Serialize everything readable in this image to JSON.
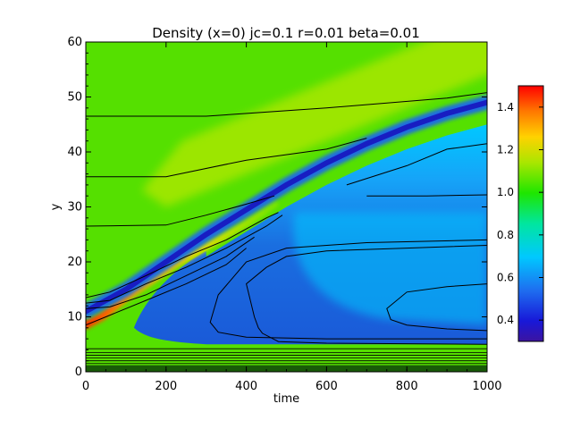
{
  "chart_data": {
    "type": "heatmap",
    "title": "Density (x=0) jc=0.1 r=0.01 beta=0.01",
    "xlabel": "time",
    "ylabel": "y",
    "xlim": [
      0,
      1000
    ],
    "ylim": [
      0,
      60
    ],
    "x_ticks": [
      0,
      200,
      400,
      600,
      800,
      1000
    ],
    "y_ticks": [
      0,
      10,
      20,
      30,
      40,
      50,
      60
    ],
    "colorbar": {
      "range": [
        0.3,
        1.5
      ],
      "ticks": [
        0.4,
        0.6,
        0.8,
        1.0,
        1.2,
        1.4
      ]
    },
    "colors": {
      "background_mid": "#55e000",
      "light_band": "#b4e800",
      "low_dark": "#1818c0",
      "low_mid": "#1a6ee0",
      "low_light": "#00c8ff",
      "high_peak": "#ff3000",
      "high_mid": "#ffc800"
    },
    "features": {
      "high_density_ridge": {
        "t": [
          0,
          40,
          100,
          160,
          220,
          280,
          340,
          400,
          470
        ],
        "y": [
          8.5,
          10,
          13.5,
          16.5,
          19.5,
          22,
          24.5,
          27,
          30.5
        ],
        "peak_value": 1.4
      },
      "depletion_front": {
        "t": [
          0,
          100,
          200,
          300,
          400,
          500,
          600,
          700,
          800,
          900,
          1000
        ],
        "y": [
          11,
          15,
          20,
          25,
          29.5,
          34,
          38,
          41.5,
          44.5,
          47,
          49
        ],
        "min_value": 0.3
      },
      "depleted_region": {
        "t_start": 120,
        "y_bottom": 7,
        "y_top": 30,
        "min_value": 0.55
      },
      "light_band": {
        "t": [
          200,
          400,
          600,
          800,
          1000
        ],
        "y": [
          36,
          42,
          48,
          54,
          60
        ],
        "value": 1.1
      }
    },
    "contours": [
      {
        "t": [
          0,
          300,
          600,
          900,
          1000
        ],
        "y": [
          46.5,
          46.5,
          48,
          49.8,
          50.8
        ]
      },
      {
        "t": [
          0,
          200,
          400,
          600,
          700
        ],
        "y": [
          35.5,
          35.5,
          38.5,
          40.5,
          42.5
        ]
      },
      {
        "t": [
          0,
          200,
          300,
          400,
          470
        ],
        "y": [
          26.5,
          26.7,
          28.5,
          30.5,
          32
        ]
      },
      {
        "t": [
          700,
          850,
          1000
        ],
        "y": [
          32,
          32,
          32.2
        ]
      },
      {
        "t": [
          650,
          800,
          900,
          1000
        ],
        "y": [
          34,
          37.5,
          40.5,
          41.5
        ]
      },
      {
        "t": [
          0,
          60,
          150,
          250,
          350,
          450,
          480
        ],
        "y": [
          13.5,
          14.5,
          17.5,
          21,
          24,
          28,
          29
        ]
      },
      {
        "t": [
          0,
          60,
          150,
          250,
          350,
          450,
          490
        ],
        "y": [
          12.5,
          13,
          16,
          19,
          22.5,
          26.5,
          28.5
        ]
      },
      {
        "t": [
          0,
          60,
          150,
          250,
          350,
          420
        ],
        "y": [
          11.5,
          11.8,
          14,
          17.5,
          21,
          24.5
        ]
      },
      {
        "t": [
          0,
          50,
          150,
          250,
          350,
          400
        ],
        "y": [
          8.5,
          10,
          13,
          16,
          19.5,
          22.5
        ]
      },
      {
        "t": [
          1000,
          800,
          600,
          500,
          450,
          400,
          420,
          430,
          440,
          480,
          600,
          1000
        ],
        "y": [
          23,
          22.5,
          22,
          21,
          19,
          16,
          10,
          8,
          7,
          5.5,
          5.2,
          5
        ]
      },
      {
        "t": [
          1000,
          900,
          800,
          750,
          760,
          800,
          900,
          1000
        ],
        "y": [
          16,
          15.5,
          14.5,
          11.5,
          9.5,
          8.5,
          7.8,
          7.5
        ]
      },
      {
        "t": [
          1000,
          700,
          500,
          400,
          330,
          310,
          330,
          400,
          600,
          1000
        ],
        "y": [
          24,
          23.5,
          22.5,
          20,
          14,
          9,
          7.2,
          6.3,
          6,
          6
        ]
      }
    ]
  }
}
